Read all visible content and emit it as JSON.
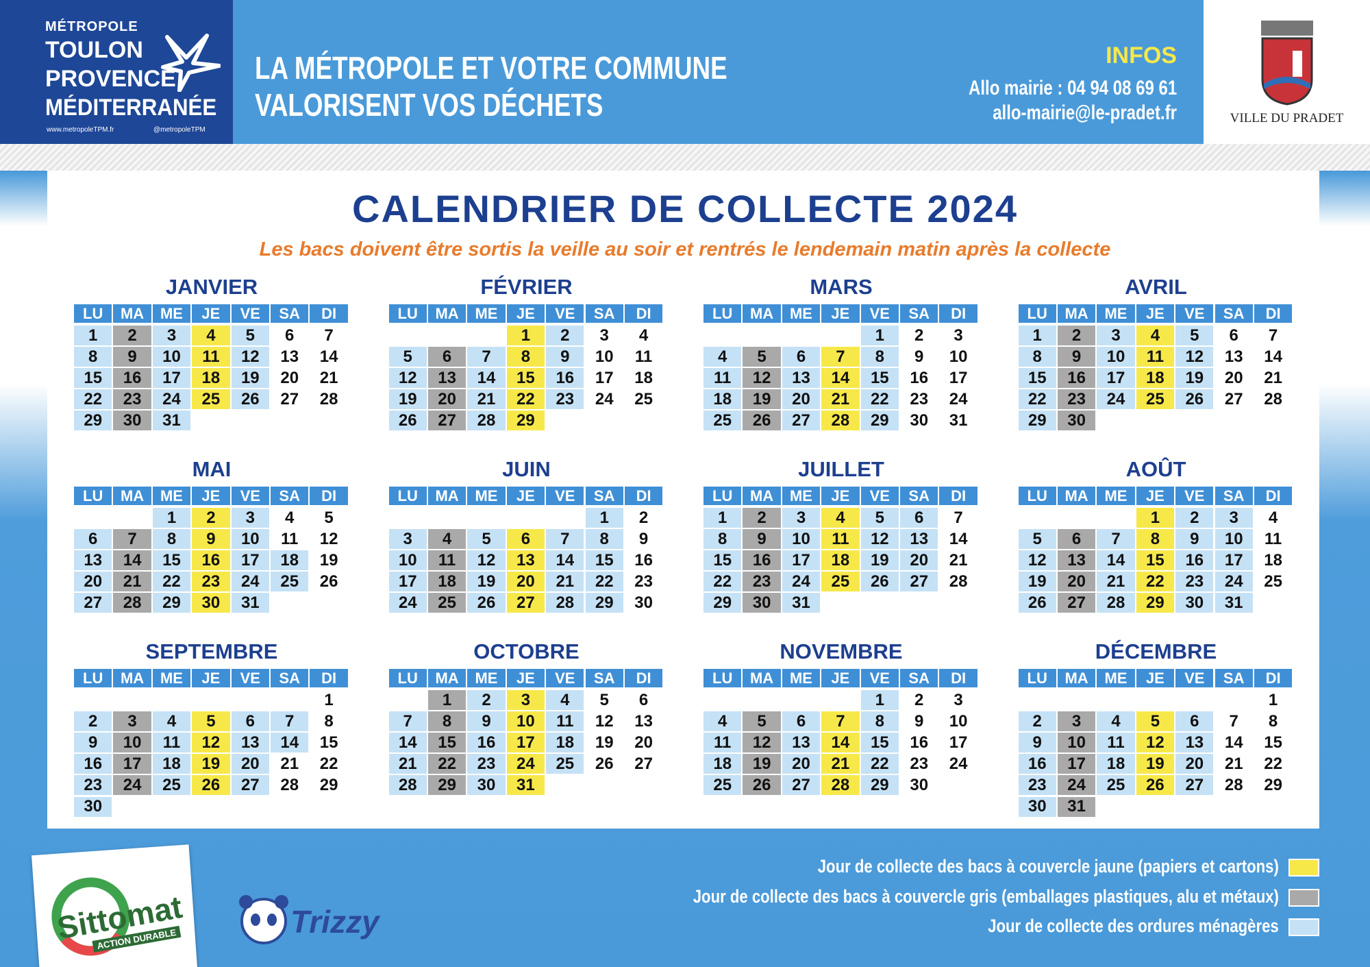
{
  "header": {
    "metropole": [
      "MÉTROPOLE",
      "TOULON",
      "PROVENCE",
      "MÉDITERRANÉE"
    ],
    "web": "www.metropoleTPM.fr",
    "social": "@metropoleTPM",
    "headline": [
      "LA MÉTROPOLE ET VOTRE COMMUNE",
      "VALORISENT VOS DÉCHETS"
    ],
    "infos_title": "INFOS",
    "phone": "Allo mairie : 04 94 08 69 61",
    "email": "allo-mairie@le-pradet.fr",
    "town": "VILLE DU PRADET"
  },
  "title": "CALENDRIER DE COLLECTE 2024",
  "subtitle": "Les bacs doivent être sortis la veille au soir et rentrés le lendemain matin après la collecte",
  "weekdays": [
    "LU",
    "MA",
    "ME",
    "JE",
    "VE",
    "SA",
    "DI"
  ],
  "cell_colors": {
    "y": "#f7e84a",
    "g": "#a9a9a9",
    "b": "#c5e1f5",
    "w": "#ffffff"
  },
  "months": [
    {
      "name": "JANVIER",
      "weeks": [
        [
          1,
          2,
          3,
          4,
          5,
          6,
          7
        ],
        [
          8,
          9,
          10,
          11,
          12,
          13,
          14
        ],
        [
          15,
          16,
          17,
          18,
          19,
          20,
          21
        ],
        [
          22,
          23,
          24,
          25,
          26,
          27,
          28
        ],
        [
          29,
          30,
          31,
          null,
          null,
          null,
          null
        ]
      ],
      "colors": [
        "bgbybww",
        "bgbybww",
        "bgbybww",
        "bgbybww",
        "bgb...."
      ]
    },
    {
      "name": "FÉVRIER",
      "weeks": [
        [
          null,
          null,
          null,
          1,
          2,
          3,
          4
        ],
        [
          5,
          6,
          7,
          8,
          9,
          10,
          11
        ],
        [
          12,
          13,
          14,
          15,
          16,
          17,
          18
        ],
        [
          19,
          20,
          21,
          22,
          23,
          24,
          25
        ],
        [
          26,
          27,
          28,
          29,
          null,
          null,
          null
        ]
      ],
      "colors": [
        "...ybww",
        "bgbybww",
        "bgbybww",
        "bgbybww",
        "bgby..."
      ]
    },
    {
      "name": "MARS",
      "weeks": [
        [
          null,
          null,
          null,
          null,
          1,
          2,
          3
        ],
        [
          4,
          5,
          6,
          7,
          8,
          9,
          10
        ],
        [
          11,
          12,
          13,
          14,
          15,
          16,
          17
        ],
        [
          18,
          19,
          20,
          21,
          22,
          23,
          24
        ],
        [
          25,
          26,
          27,
          28,
          29,
          30,
          31
        ]
      ],
      "colors": [
        "....bww",
        "bgbybww",
        "bgbybww",
        "bgbybww",
        "bgbybww"
      ]
    },
    {
      "name": "AVRIL",
      "weeks": [
        [
          1,
          2,
          3,
          4,
          5,
          6,
          7
        ],
        [
          8,
          9,
          10,
          11,
          12,
          13,
          14
        ],
        [
          15,
          16,
          17,
          18,
          19,
          20,
          21
        ],
        [
          22,
          23,
          24,
          25,
          26,
          27,
          28
        ],
        [
          29,
          30,
          null,
          null,
          null,
          null,
          null
        ]
      ],
      "colors": [
        "bgbybww",
        "bgbybww",
        "bgbybww",
        "bgbybww",
        "bg....."
      ]
    },
    {
      "name": "MAI",
      "weeks": [
        [
          null,
          null,
          1,
          2,
          3,
          4,
          5
        ],
        [
          6,
          7,
          8,
          9,
          10,
          11,
          12
        ],
        [
          13,
          14,
          15,
          16,
          17,
          18,
          19
        ],
        [
          20,
          21,
          22,
          23,
          24,
          25,
          26
        ],
        [
          27,
          28,
          29,
          30,
          31,
          null,
          null
        ]
      ],
      "colors": [
        "..bybww",
        "bgbybww",
        "bgbybbw",
        "bgbybbw",
        "bgbyb.."
      ]
    },
    {
      "name": "JUIN",
      "weeks": [
        [
          null,
          null,
          null,
          null,
          null,
          1,
          2
        ],
        [
          3,
          4,
          5,
          6,
          7,
          8,
          9
        ],
        [
          10,
          11,
          12,
          13,
          14,
          15,
          16
        ],
        [
          17,
          18,
          19,
          20,
          21,
          22,
          23
        ],
        [
          24,
          25,
          26,
          27,
          28,
          29,
          30
        ]
      ],
      "colors": [
        ".....bw",
        "bgbybbw",
        "bgbybbw",
        "bgbybbw",
        "bgbybbw"
      ]
    },
    {
      "name": "JUILLET",
      "weeks": [
        [
          1,
          2,
          3,
          4,
          5,
          6,
          7
        ],
        [
          8,
          9,
          10,
          11,
          12,
          13,
          14
        ],
        [
          15,
          16,
          17,
          18,
          19,
          20,
          21
        ],
        [
          22,
          23,
          24,
          25,
          26,
          27,
          28
        ],
        [
          29,
          30,
          31,
          null,
          null,
          null,
          null
        ]
      ],
      "colors": [
        "bgbybbw",
        "bgbybbw",
        "bgbybbw",
        "bgbybbw",
        "bgb...."
      ]
    },
    {
      "name": "AOÛT",
      "weeks": [
        [
          null,
          null,
          null,
          1,
          2,
          3,
          4
        ],
        [
          5,
          6,
          7,
          8,
          9,
          10,
          11
        ],
        [
          12,
          13,
          14,
          15,
          16,
          17,
          18
        ],
        [
          19,
          20,
          21,
          22,
          23,
          24,
          25
        ],
        [
          26,
          27,
          28,
          29,
          30,
          31,
          null
        ]
      ],
      "colors": [
        "...ybbw",
        "bgbybbw",
        "bgbybbw",
        "bgbybbw",
        "bgbybb."
      ]
    },
    {
      "name": "SEPTEMBRE",
      "weeks": [
        [
          null,
          null,
          null,
          null,
          null,
          null,
          1
        ],
        [
          2,
          3,
          4,
          5,
          6,
          7,
          8
        ],
        [
          9,
          10,
          11,
          12,
          13,
          14,
          15
        ],
        [
          16,
          17,
          18,
          19,
          20,
          21,
          22
        ],
        [
          23,
          24,
          25,
          26,
          27,
          28,
          29
        ],
        [
          30,
          null,
          null,
          null,
          null,
          null,
          null
        ]
      ],
      "colors": [
        "......w",
        "bgbybbw",
        "bgbybbw",
        "bgbybww",
        "bgbybww",
        "b......"
      ]
    },
    {
      "name": "OCTOBRE",
      "weeks": [
        [
          null,
          1,
          2,
          3,
          4,
          5,
          6
        ],
        [
          7,
          8,
          9,
          10,
          11,
          12,
          13
        ],
        [
          14,
          15,
          16,
          17,
          18,
          19,
          20
        ],
        [
          21,
          22,
          23,
          24,
          25,
          26,
          27
        ],
        [
          28,
          29,
          30,
          31,
          null,
          null,
          null
        ]
      ],
      "colors": [
        ".gbybww",
        "bgbybww",
        "bgbybww",
        "bgbybww",
        "bgby..."
      ]
    },
    {
      "name": "NOVEMBRE",
      "weeks": [
        [
          null,
          null,
          null,
          null,
          1,
          2,
          3
        ],
        [
          4,
          5,
          6,
          7,
          8,
          9,
          10
        ],
        [
          11,
          12,
          13,
          14,
          15,
          16,
          17
        ],
        [
          18,
          19,
          20,
          21,
          22,
          23,
          24
        ],
        [
          25,
          26,
          27,
          28,
          29,
          30,
          null
        ]
      ],
      "colors": [
        "....bww",
        "bgbybww",
        "bgbybww",
        "bgbybww",
        "bgbybw."
      ]
    },
    {
      "name": "DÉCEMBRE",
      "weeks": [
        [
          null,
          null,
          null,
          null,
          null,
          null,
          1
        ],
        [
          2,
          3,
          4,
          5,
          6,
          7,
          8
        ],
        [
          9,
          10,
          11,
          12,
          13,
          14,
          15
        ],
        [
          16,
          17,
          18,
          19,
          20,
          21,
          22
        ],
        [
          23,
          24,
          25,
          26,
          27,
          28,
          29
        ],
        [
          30,
          31,
          null,
          null,
          null,
          null,
          null
        ]
      ],
      "colors": [
        "......w",
        "bgbybww",
        "bgbybww",
        "bgbybww",
        "bgbybww",
        "bg....."
      ]
    }
  ],
  "legend": [
    {
      "label": "Jour de collecte des bacs à couvercle jaune (papiers et cartons)",
      "color": "y"
    },
    {
      "label": "Jour de collecte des bacs à couvercle gris (emballages plastiques, alu et métaux)",
      "color": "g"
    },
    {
      "label": "Jour de collecte des ordures ménagères",
      "color": "b"
    }
  ],
  "footer": {
    "sittomat": "Sittomat",
    "sittomat_tagline": "ACTION DURABLE",
    "trizzy": "Trizzy"
  }
}
